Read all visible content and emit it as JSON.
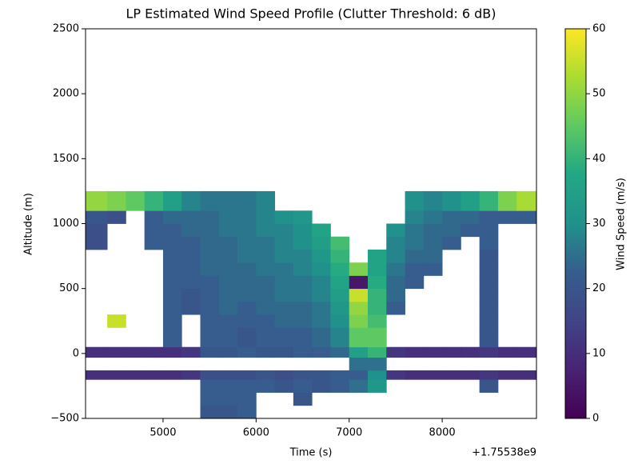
{
  "chart_data": {
    "type": "heatmap",
    "title": "LP Estimated Wind Speed Profile (Clutter Threshold: 6 dB)",
    "x_label": "Time (s)",
    "y_label": "Altitude (m)",
    "x_offset_label": "+1.75538e9",
    "colorbar_label": "Wind Speed (m/s)",
    "colormap": "viridis",
    "xlim": [
      4167,
      9013
    ],
    "xticks": [
      5000,
      6000,
      7000,
      8000
    ],
    "ylim": [
      -500,
      2500
    ],
    "yticks": [
      {
        "value": -500,
        "label": "−500"
      },
      0,
      500,
      1000,
      1500,
      2000,
      2500
    ],
    "clim": [
      0,
      60
    ],
    "cticks": [
      0,
      10,
      20,
      30,
      40,
      50,
      60
    ],
    "x_edges": [
      4170,
      4400,
      4600,
      4800,
      5000,
      5200,
      5400,
      5600,
      5800,
      6000,
      6200,
      6400,
      6600,
      6800,
      7000,
      7200,
      7400,
      7600,
      7800,
      8000,
      8200,
      8400,
      8600,
      8800,
      9010
    ],
    "y_edges": [
      -500,
      -400,
      -300,
      -200,
      -130,
      -30,
      50,
      200,
      300,
      400,
      500,
      600,
      700,
      800,
      900,
      1000,
      1100,
      1250
    ],
    "values": [
      [
        null,
        null,
        null,
        null,
        null,
        null,
        20,
        20,
        22,
        null,
        null,
        null,
        null,
        null,
        null,
        null,
        null,
        null,
        null,
        null,
        null,
        null,
        null,
        null
      ],
      [
        null,
        null,
        null,
        null,
        null,
        null,
        22,
        22,
        22,
        null,
        null,
        20,
        null,
        null,
        null,
        null,
        null,
        null,
        null,
        null,
        null,
        null,
        null,
        null
      ],
      [
        null,
        null,
        null,
        null,
        null,
        null,
        22,
        22,
        22,
        22,
        20,
        22,
        20,
        22,
        25,
        32,
        null,
        null,
        null,
        null,
        null,
        20,
        null,
        null
      ],
      [
        10,
        10,
        10,
        10,
        10,
        12,
        18,
        18,
        18,
        20,
        18,
        20,
        20,
        22,
        22,
        30,
        12,
        10,
        10,
        10,
        10,
        12,
        10,
        10
      ],
      [
        null,
        null,
        null,
        null,
        null,
        null,
        null,
        null,
        null,
        null,
        null,
        null,
        null,
        null,
        25,
        25,
        null,
        null,
        null,
        null,
        null,
        null,
        null,
        null
      ],
      [
        10,
        10,
        10,
        10,
        10,
        12,
        20,
        20,
        22,
        20,
        20,
        22,
        22,
        24,
        35,
        40,
        12,
        10,
        10,
        10,
        10,
        12,
        10,
        10
      ],
      [
        null,
        null,
        null,
        null,
        22,
        null,
        22,
        22,
        20,
        22,
        22,
        22,
        24,
        28,
        45,
        45,
        null,
        null,
        null,
        null,
        null,
        20,
        null,
        null
      ],
      [
        null,
        55,
        null,
        null,
        22,
        null,
        22,
        22,
        22,
        22,
        24,
        24,
        26,
        30,
        48,
        42,
        null,
        null,
        null,
        null,
        null,
        20,
        null,
        null
      ],
      [
        null,
        null,
        null,
        null,
        22,
        20,
        22,
        24,
        22,
        24,
        24,
        24,
        26,
        32,
        50,
        40,
        22,
        null,
        null,
        null,
        null,
        20,
        null,
        null
      ],
      [
        null,
        null,
        null,
        null,
        22,
        20,
        22,
        24,
        24,
        24,
        26,
        26,
        28,
        34,
        55,
        40,
        24,
        null,
        null,
        null,
        null,
        20,
        null,
        null
      ],
      [
        null,
        null,
        null,
        null,
        22,
        22,
        22,
        24,
        24,
        24,
        26,
        26,
        28,
        36,
        5,
        38,
        24,
        22,
        null,
        null,
        null,
        20,
        null,
        null
      ],
      [
        null,
        null,
        null,
        null,
        22,
        22,
        24,
        24,
        24,
        26,
        26,
        28,
        30,
        38,
        48,
        36,
        26,
        22,
        22,
        null,
        null,
        20,
        null,
        null
      ],
      [
        null,
        null,
        null,
        null,
        22,
        22,
        24,
        24,
        26,
        26,
        28,
        28,
        32,
        40,
        null,
        36,
        28,
        24,
        24,
        null,
        null,
        20,
        null,
        null
      ],
      [
        18,
        null,
        null,
        22,
        22,
        22,
        24,
        24,
        26,
        26,
        28,
        30,
        34,
        42,
        null,
        null,
        28,
        26,
        24,
        22,
        null,
        22,
        null,
        null
      ],
      [
        18,
        null,
        null,
        22,
        22,
        24,
        24,
        26,
        26,
        28,
        28,
        30,
        36,
        null,
        null,
        null,
        30,
        26,
        24,
        24,
        22,
        22,
        null,
        null
      ],
      [
        20,
        18,
        null,
        22,
        24,
        24,
        24,
        26,
        26,
        28,
        30,
        32,
        null,
        null,
        null,
        null,
        null,
        28,
        26,
        24,
        24,
        22,
        22,
        22
      ],
      [
        50,
        48,
        45,
        40,
        35,
        28,
        26,
        26,
        26,
        28,
        null,
        null,
        null,
        null,
        null,
        null,
        null,
        30,
        28,
        30,
        35,
        40,
        48,
        52
      ]
    ]
  }
}
